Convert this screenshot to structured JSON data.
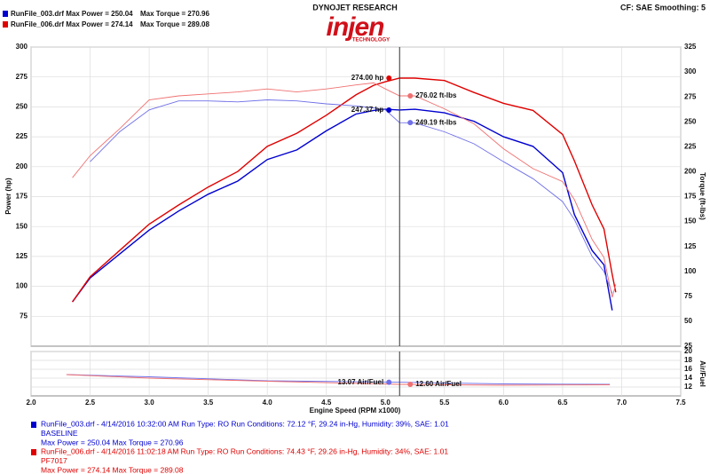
{
  "header": {
    "run1": "RunFile_003.drf Max Power = 250.04",
    "run1_torque": "Max Torque = 270.96",
    "run2": "RunFile_006.drf Max Power = 274.14",
    "run2_torque": "Max Torque = 289.08",
    "brand": "DYNOJET RESEARCH",
    "logo": "injen",
    "logo_sub": "TECHNOLOGY",
    "settings": "CF: SAE  Smoothing: 5"
  },
  "footer": [
    {
      "color": "#0000d0",
      "lines": [
        "RunFile_003.drf - 4/14/2016 10:32:00 AM  Run Type: RO  Run Conditions: 72.12 °F, 29.24 in-Hg,  Humidity:  39%, SAE: 1.01",
        "BASELINE",
        "Max Power = 250.04   Max Torque = 270.96"
      ]
    },
    {
      "color": "#e00000",
      "lines": [
        "RunFile_006.drf - 4/14/2016 11:02:18 AM  Run Type: RO  Run Conditions: 74.43 °F, 29.26 in-Hg,  Humidity:  34%, SAE: 1.01",
        "PF7017",
        "Max Power = 274.14   Max Torque = 289.08"
      ]
    }
  ],
  "chart_data": [
    {
      "type": "line",
      "ylabel": "Power (hp)",
      "y2label": "Torque (ft-lbs)",
      "grid": true,
      "xlim": [
        2.0,
        7.5
      ],
      "ylim": [
        50,
        300
      ],
      "yticks": [
        75,
        100,
        125,
        150,
        175,
        200,
        225,
        250,
        275,
        300
      ],
      "y2lim": [
        25,
        325
      ],
      "y2ticks": [
        25,
        50,
        75,
        100,
        125,
        150,
        175,
        200,
        225,
        250,
        275,
        300,
        325
      ],
      "x": [
        2.35,
        2.5,
        2.75,
        3.0,
        3.25,
        3.5,
        3.75,
        4.0,
        4.25,
        4.5,
        4.75,
        4.9,
        5.0,
        5.12,
        5.25,
        5.5,
        5.75,
        6.0,
        6.25,
        6.5,
        6.6,
        6.75,
        6.85,
        6.92,
        6.95
      ],
      "series": [
        {
          "color": "#0000d0",
          "width": 1.4,
          "values": [
            87,
            107,
            127,
            147,
            163,
            177,
            188,
            206,
            214,
            230,
            244,
            247,
            248,
            247.37,
            248,
            245,
            238,
            225,
            217,
            195,
            160,
            130,
            118,
            80,
            null
          ]
        },
        {
          "color": "#e00000",
          "width": 1.4,
          "values": [
            87,
            108,
            130,
            152,
            168,
            183,
            196,
            217,
            228,
            243,
            260,
            268,
            271,
            274,
            274,
            272,
            262,
            253,
            247,
            227,
            205,
            168,
            148,
            110,
            95
          ]
        },
        {
          "color": "#6f6fe8",
          "width": 0.9,
          "axis": "y2",
          "values": [
            null,
            210,
            240,
            262,
            271,
            271,
            270,
            272,
            271,
            268,
            266,
            264,
            262,
            249.19,
            249,
            240,
            228,
            210,
            193,
            170,
            152,
            115,
            100,
            78,
            null
          ]
        },
        {
          "color": "#f07070",
          "width": 0.9,
          "axis": "y2",
          "values": [
            194,
            216,
            243,
            272,
            276,
            278,
            280,
            283,
            280,
            283,
            287,
            289,
            283,
            276.02,
            276,
            263,
            248,
            223,
            203,
            190,
            172,
            132,
            114,
            74,
            87
          ]
        }
      ],
      "cursor": {
        "x": 5.12,
        "markers": [
          {
            "label": "274.00 hp",
            "value": 274.0,
            "color": "#e00000"
          },
          {
            "label": "276.02 ft-lbs",
            "value": 276.02,
            "color": "#f07070",
            "axis": "y2"
          },
          {
            "label": "247.37 hp",
            "value": 247.37,
            "color": "#0000d0"
          },
          {
            "label": "249.19 ft-lbs",
            "value": 249.19,
            "color": "#6f6fe8",
            "axis": "y2"
          }
        ]
      }
    },
    {
      "type": "line",
      "ylabel": "Air/Fuel",
      "xlabel": "Engine Speed (RPM x1000)",
      "grid": true,
      "xlim": [
        2.0,
        7.5
      ],
      "ylim": [
        10,
        20
      ],
      "yticks": [
        12,
        14,
        16,
        18,
        20
      ],
      "xticks": [
        {
          "value": 2,
          "label": "2.0"
        },
        2.5,
        {
          "value": 3,
          "label": "3.0"
        },
        3.5,
        {
          "value": 4,
          "label": "4.0"
        },
        4.5,
        {
          "value": 5,
          "label": "5.0"
        },
        5.5,
        {
          "value": 6,
          "label": "6.0"
        },
        6.5,
        {
          "value": 7,
          "label": "7.0"
        },
        7.5
      ],
      "x": [
        2.3,
        3.0,
        4.0,
        5.12,
        6.0,
        6.9
      ],
      "series": [
        {
          "color": "#6f6fe8",
          "width": 0.9,
          "values": [
            14.8,
            14.3,
            13.4,
            13.07,
            12.7,
            12.6
          ]
        },
        {
          "color": "#f07070",
          "width": 0.9,
          "values": [
            14.8,
            14.0,
            13.3,
            12.6,
            12.4,
            12.5
          ]
        }
      ],
      "cursor": {
        "x": 5.12,
        "markers": [
          {
            "label": "13.07 Air/Fuel",
            "value": 13.07,
            "color": "#6f6fe8"
          },
          {
            "label": "12.60 Air/Fuel",
            "value": 12.6,
            "color": "#f07070"
          }
        ]
      }
    }
  ]
}
